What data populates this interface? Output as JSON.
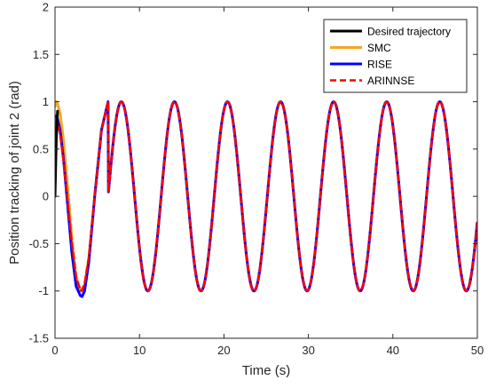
{
  "chart_data": {
    "type": "line",
    "xlabel": "Time (s)",
    "ylabel": "Position tracking of joint 2 (rad)",
    "xlim": [
      0,
      50
    ],
    "ylim": [
      -1.5,
      2
    ],
    "x_ticks": [
      0,
      10,
      20,
      30,
      40,
      50
    ],
    "x_tick_labels": [
      "0",
      "10",
      "20",
      "30",
      "40",
      "50"
    ],
    "y_ticks": [
      -1.5,
      -1,
      -0.5,
      0,
      0.5,
      1,
      1.5,
      2
    ],
    "y_tick_labels": [
      "-1.5",
      "-1",
      "-0.5",
      "0",
      "0.5",
      "1",
      "1.5",
      "2"
    ],
    "grid": false,
    "legend_position": "top-right",
    "series": [
      {
        "name": "Desired trajectory",
        "color": "#000000",
        "line_style": "solid",
        "x": [
          0,
          0.15,
          0.3
        ],
        "y": [
          0,
          0.6,
          0.9
        ]
      },
      {
        "name": "SMC",
        "color": "#f5a623",
        "line_style": "solid",
        "x": [
          0,
          0.15,
          0.3,
          0.6,
          1.0,
          1.5,
          2.0,
          2.5,
          3.0,
          3.14,
          3.5,
          4.0,
          4.7,
          5.5,
          6.28
        ],
        "y": [
          0.95,
          1.0,
          0.98,
          0.88,
          0.6,
          0.1,
          -0.45,
          -0.85,
          -0.99,
          -1.0,
          -0.93,
          -0.65,
          0.0,
          0.7,
          1.0
        ]
      },
      {
        "name": "RISE",
        "color": "#0000ff",
        "line_style": "solid",
        "x": [
          0,
          0.15,
          0.3,
          0.6,
          1.0,
          1.5,
          2.0,
          2.5,
          3.0,
          3.2,
          3.5,
          4.0,
          4.7,
          5.5,
          6.28
        ],
        "y": [
          0.75,
          0.85,
          0.82,
          0.7,
          0.4,
          -0.1,
          -0.6,
          -0.95,
          -1.05,
          -1.06,
          -1.0,
          -0.7,
          0.0,
          0.7,
          1.0
        ]
      },
      {
        "name": "ARINNSE",
        "color": "#ff0000",
        "line_style": "dashed",
        "x": [
          0,
          0.15,
          0.3,
          0.6,
          1.0,
          1.5,
          2.0,
          2.5,
          3.0,
          3.14,
          3.5,
          4.0,
          4.7,
          5.5,
          6.28
        ],
        "y": [
          0.7,
          0.82,
          0.78,
          0.66,
          0.38,
          -0.05,
          -0.5,
          -0.86,
          -0.99,
          -1.0,
          -0.93,
          -0.65,
          0.0,
          0.7,
          1.0
        ]
      }
    ],
    "steady_state": {
      "function": "sin(t)",
      "from_x": 6.28,
      "to_x": 50,
      "applies_to": [
        "SMC",
        "RISE",
        "ARINNSE"
      ]
    }
  }
}
